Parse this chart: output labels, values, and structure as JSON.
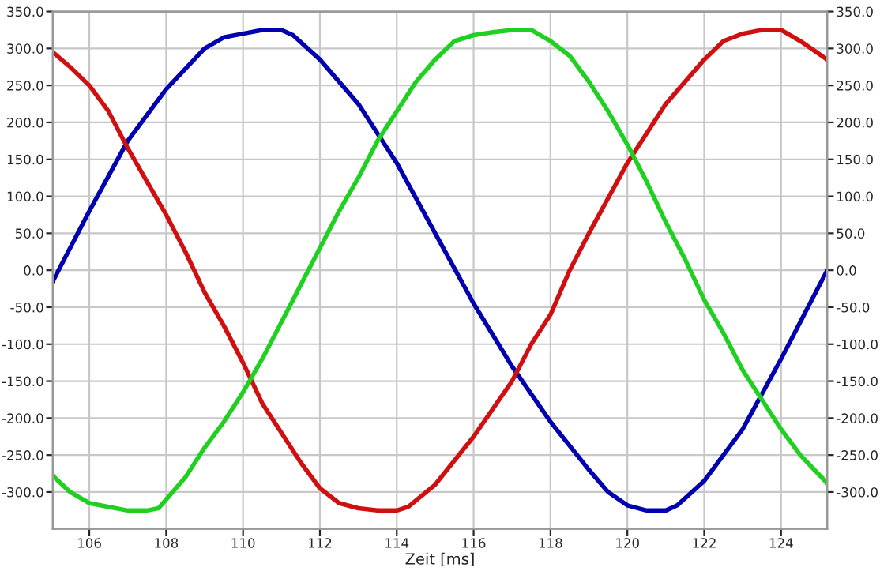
{
  "chart_data": {
    "type": "line",
    "xlabel": "Zeit [ms]",
    "xlim": [
      105.05,
      125.2
    ],
    "xticks": [
      106,
      108,
      110,
      112,
      114,
      116,
      118,
      120,
      122,
      124
    ],
    "ylim": [
      -350,
      350
    ],
    "yticks": [
      {
        "value": -300,
        "label": "-300.0"
      },
      {
        "value": -250,
        "label": "-250.0"
      },
      {
        "value": -200,
        "label": "-200.0"
      },
      {
        "value": -150,
        "label": "-150.0"
      },
      {
        "value": -100,
        "label": "-100.0"
      },
      {
        "value": -50,
        "label": "-50.0"
      },
      {
        "value": 0,
        "label": "0.0"
      },
      {
        "value": 50,
        "label": "50.0"
      },
      {
        "value": 100,
        "label": "100.0"
      },
      {
        "value": 150,
        "label": "150.0"
      },
      {
        "value": 200,
        "label": "200.0"
      },
      {
        "value": 250,
        "label": "250.0"
      },
      {
        "value": 300,
        "label": "300.0"
      },
      {
        "value": 350,
        "label": "350.0"
      }
    ],
    "y2lim": [
      -350,
      350
    ],
    "y2ticks": [
      {
        "value": -300,
        "label": "-300.0"
      },
      {
        "value": -250,
        "label": "-250.0"
      },
      {
        "value": -200,
        "label": "-200.0"
      },
      {
        "value": -150,
        "label": "-150.0"
      },
      {
        "value": -100,
        "label": "-100.0"
      },
      {
        "value": -50,
        "label": "-50.0"
      },
      {
        "value": 0,
        "label": "0.0"
      },
      {
        "value": 50,
        "label": "50.0"
      },
      {
        "value": 100,
        "label": "100.0"
      },
      {
        "value": 150,
        "label": "150.0"
      },
      {
        "value": 200,
        "label": "200.0"
      },
      {
        "value": 250,
        "label": "250.0"
      },
      {
        "value": 300,
        "label": "300.0"
      },
      {
        "value": 350,
        "label": "350.0"
      }
    ],
    "grid": true,
    "legend": false,
    "marker": "none",
    "line_style": "solid",
    "series": [
      {
        "color": "#0000b0",
        "x": [
          105.05,
          106,
          107,
          108,
          109,
          109.5,
          110,
          110.5,
          111,
          111.3,
          112,
          113,
          114,
          115,
          116,
          117,
          118,
          119,
          119.5,
          120,
          120.5,
          121,
          121.3,
          122,
          123,
          124,
          124.6,
          125.2
        ],
        "values": [
          -15,
          80,
          175,
          245,
          300,
          315,
          320,
          325,
          325,
          318,
          285,
          225,
          145,
          50,
          -45,
          -130,
          -205,
          -270,
          -300,
          -318,
          -325,
          -325,
          -318,
          -285,
          -215,
          -120,
          -60,
          0
        ]
      },
      {
        "color": "#d01010",
        "x": [
          105.05,
          105.5,
          106,
          106.5,
          107,
          107.5,
          108,
          108.5,
          109,
          109.5,
          110,
          110.5,
          111,
          111.5,
          112,
          112.5,
          113,
          113.5,
          114,
          114.3,
          115,
          116,
          117,
          117.5,
          118,
          118.5,
          119,
          120,
          121,
          122,
          122.5,
          123,
          123.5,
          124,
          124.5,
          125.2
        ],
        "values": [
          295,
          275,
          250,
          215,
          165,
          120,
          75,
          25,
          -30,
          -75,
          -125,
          -180,
          -220,
          -260,
          -295,
          -315,
          -322,
          -325,
          -325,
          -320,
          -290,
          -225,
          -150,
          -100,
          -60,
          0,
          50,
          145,
          225,
          285,
          310,
          320,
          325,
          325,
          310,
          285
        ]
      },
      {
        "color": "#20d020",
        "x": [
          105.05,
          105.5,
          106,
          106.5,
          107,
          107.5,
          107.8,
          108,
          108.5,
          109,
          109.5,
          110,
          110.5,
          111,
          111.5,
          112,
          112.5,
          113,
          113.5,
          114,
          114.5,
          115,
          115.5,
          116,
          116.5,
          117,
          117.5,
          118,
          118.5,
          119,
          119.5,
          120,
          120.5,
          121,
          121.5,
          122,
          122.5,
          123,
          123.5,
          124,
          124.5,
          125.2
        ],
        "values": [
          -278,
          -300,
          -315,
          -320,
          -325,
          -325,
          -322,
          -310,
          -280,
          -240,
          -205,
          -165,
          -120,
          -70,
          -20,
          30,
          80,
          125,
          175,
          215,
          255,
          285,
          310,
          318,
          322,
          325,
          325,
          310,
          290,
          255,
          215,
          170,
          120,
          65,
          15,
          -40,
          -85,
          -135,
          -175,
          -215,
          -250,
          -288
        ]
      }
    ]
  }
}
